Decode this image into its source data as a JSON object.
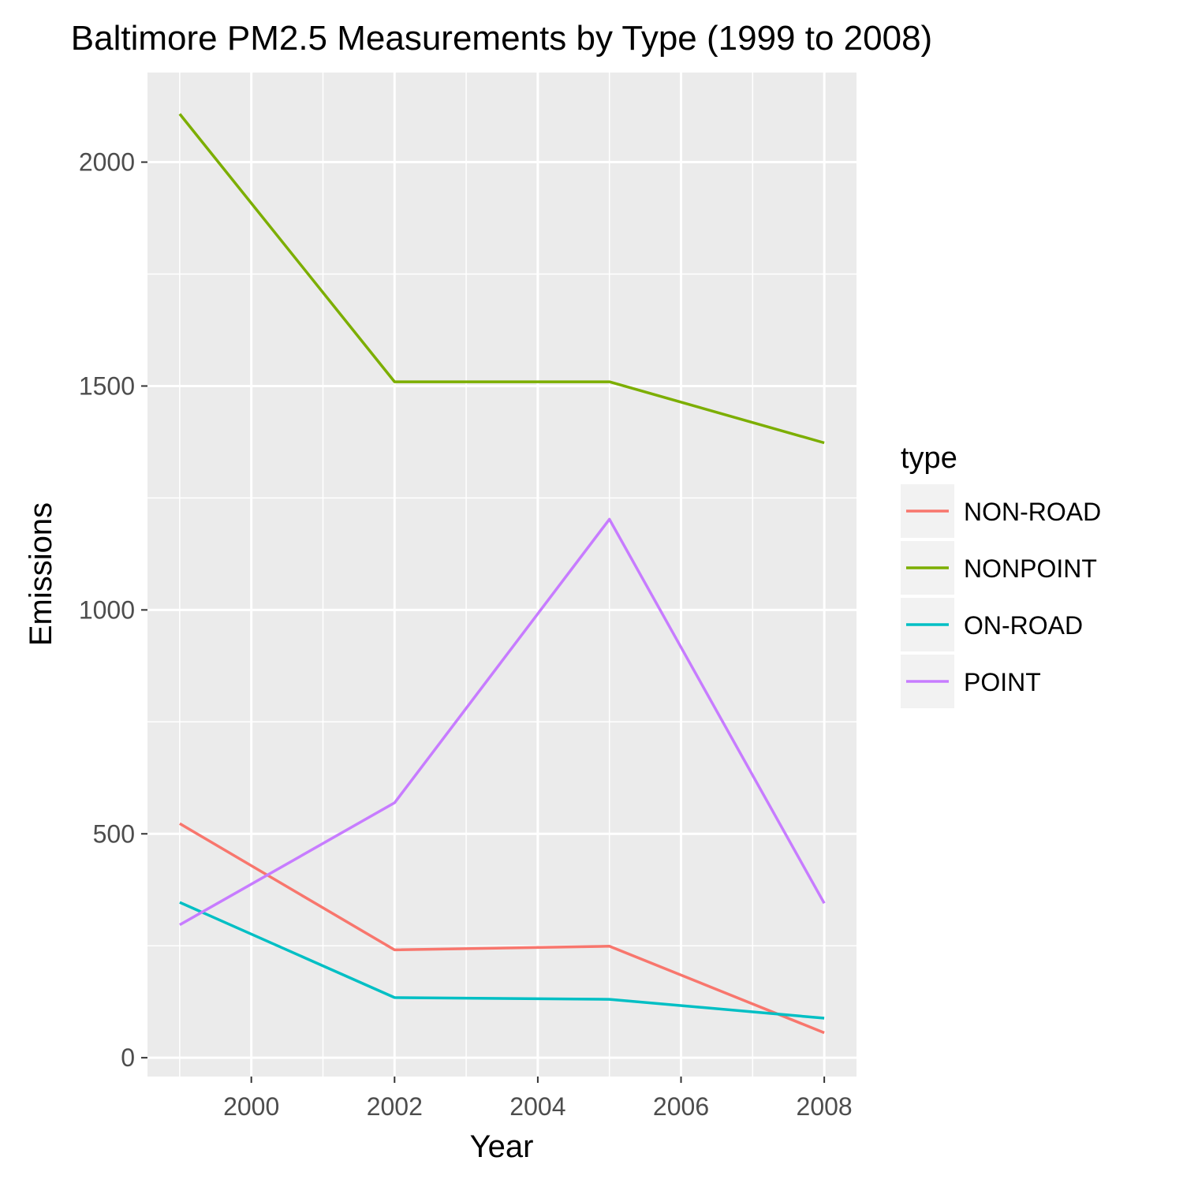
{
  "chart_data": {
    "type": "line",
    "title": "Baltimore PM2.5 Measurements by Type (1999 to 2008)",
    "xlabel": "Year",
    "ylabel": "Emissions",
    "x": [
      1999,
      2002,
      2005,
      2008
    ],
    "xlim": [
      1998.55,
      2008.45
    ],
    "ylim": [
      -42,
      2200
    ],
    "x_ticks": [
      2000,
      2002,
      2004,
      2006,
      2008
    ],
    "x_minor_ticks": [
      1999,
      2001,
      2003,
      2005,
      2007
    ],
    "y_ticks": [
      0,
      500,
      1000,
      1500,
      2000
    ],
    "y_minor_ticks": [
      250,
      750,
      1250,
      1750
    ],
    "grid": true,
    "legend": {
      "title": "type",
      "position": "right"
    },
    "panel_background": "#ebebeb",
    "series": [
      {
        "name": "NON-ROAD",
        "color": "#f8766d",
        "values": [
          522.9,
          240.8,
          248.9,
          55.8
        ]
      },
      {
        "name": "NONPOINT",
        "color": "#7cae00",
        "values": [
          2107.6,
          1509.5,
          1509.5,
          1373.2
        ]
      },
      {
        "name": "ON-ROAD",
        "color": "#00bfc4",
        "values": [
          346.8,
          134.3,
          130.4,
          88.3
        ]
      },
      {
        "name": "POINT",
        "color": "#c77cff",
        "values": [
          296.8,
          569.3,
          1202.5,
          344.98
        ]
      }
    ]
  }
}
